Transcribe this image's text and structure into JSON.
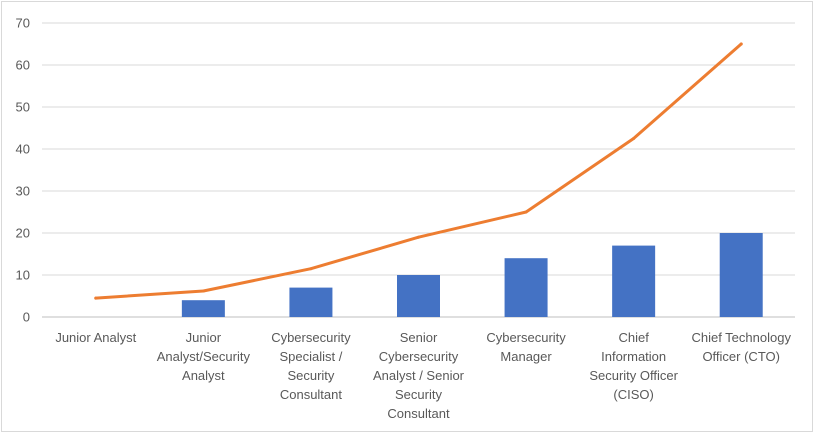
{
  "chart_data": {
    "type": "bar",
    "categories": [
      "Junior Analyst",
      "Junior Analyst/Security Analyst",
      "Cybersecurity Specialist / Security Consultant",
      "Senior Cybersecurity Analyst / Senior Security Consultant",
      "Cybersecurity Manager",
      "Chief Information Security Officer (CISO)",
      "Chief Technology Officer (CTO)"
    ],
    "category_lines": [
      [
        "Junior Analyst"
      ],
      [
        "Junior",
        "Analyst/Security",
        "Analyst"
      ],
      [
        "Cybersecurity",
        "Specialist /",
        "Security",
        "Consultant"
      ],
      [
        "Senior",
        "Cybersecurity",
        "Analyst / Senior",
        "Security",
        "Consultant"
      ],
      [
        "Cybersecurity",
        "Manager"
      ],
      [
        "Chief",
        "Information",
        "Security Officer",
        "(CISO)"
      ],
      [
        "Chief Technology",
        "Officer (CTO)"
      ]
    ],
    "series": [
      {
        "type": "bar",
        "values": [
          0,
          4,
          7,
          10,
          14,
          17,
          20
        ],
        "color": "#4472C4"
      },
      {
        "type": "line",
        "values": [
          4.5,
          6.2,
          11.5,
          19,
          25,
          42.5,
          65
        ],
        "color": "#ED7D31"
      }
    ],
    "ylim": [
      0,
      70
    ],
    "yticks": [
      0,
      10,
      20,
      30,
      40,
      50,
      60,
      70
    ],
    "grid": true,
    "title": "",
    "xlabel": "",
    "ylabel": ""
  }
}
